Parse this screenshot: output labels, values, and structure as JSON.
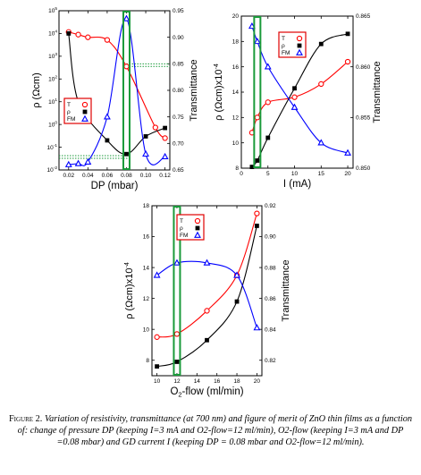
{
  "chart_data": [
    {
      "type": "line",
      "x": [
        0.02,
        0.03,
        0.04,
        0.05,
        0.06,
        0.07,
        0.08,
        0.09,
        0.1,
        0.11,
        0.12
      ],
      "xlabel": "DP (mbar)",
      "ylabel": "ρ (Ωcm)",
      "y2label": "Transmittance",
      "xlim": [
        0.01,
        0.125
      ],
      "xticks": [
        "0.02",
        "0.04",
        "0.06",
        "0.08",
        "0.10",
        "0.12"
      ],
      "ylim_log10": [
        -2,
        5
      ],
      "yticks": [
        "10-2",
        "10-1",
        "100",
        "101",
        "102",
        "103",
        "104",
        "105"
      ],
      "y2lim": [
        0.65,
        0.95
      ],
      "y2ticks": [
        "0.65",
        "0.70",
        "0.75",
        "0.80",
        "0.85",
        "0.90",
        "0.95"
      ],
      "legend": [
        "T",
        "ρ",
        "FM"
      ],
      "legend_position": "left",
      "series": [
        {
          "name": "T",
          "axis": "right",
          "marker": "open-circle",
          "color": "#ff0000",
          "x": [
            0.02,
            0.03,
            0.04,
            0.06,
            0.08,
            0.11,
            0.12
          ],
          "values": [
            0.91,
            0.905,
            0.9,
            0.895,
            0.845,
            0.73,
            0.71
          ]
        },
        {
          "name": "ρ",
          "axis": "left",
          "scale": "log",
          "marker": "filled-square",
          "color": "#000000",
          "x": [
            0.02,
            0.03,
            0.06,
            0.08,
            0.1,
            0.12
          ],
          "values": [
            10000,
            10,
            0.2,
            0.05,
            0.3,
            0.7
          ]
        },
        {
          "name": "FM",
          "axis": "right",
          "marker": "open-triangle",
          "color": "#0000ff",
          "x": [
            0.02,
            0.03,
            0.04,
            0.06,
            0.08,
            0.1,
            0.12
          ],
          "values": [
            0.66,
            0.662,
            0.665,
            0.75,
            0.935,
            0.68,
            0.675
          ]
        }
      ],
      "highlight_x": 0.08,
      "dotted_reference_lines": [
        0.85,
        0.845,
        0.677,
        0.672
      ]
    },
    {
      "type": "line",
      "x": [
        2,
        3,
        5,
        10,
        15,
        20
      ],
      "xlabel": "I (mA)",
      "ylabel": "ρ (Ωcm)x10-4",
      "y2label": "Transmittance",
      "xlim": [
        0,
        21
      ],
      "xticks": [
        "0",
        "5",
        "10",
        "15",
        "20"
      ],
      "ylim": [
        8,
        20
      ],
      "yticks": [
        "8",
        "10",
        "12",
        "14",
        "16",
        "18",
        "20"
      ],
      "y2lim": [
        0.85,
        0.865
      ],
      "y2ticks": [
        "0.850",
        "0.855",
        "0.860",
        "0.865"
      ],
      "legend": [
        "T",
        "ρ",
        "FM"
      ],
      "legend_position": "top-right",
      "series": [
        {
          "name": "T",
          "axis": "right",
          "marker": "open-circle",
          "color": "#ff0000",
          "x": [
            2,
            3,
            5,
            10,
            15,
            20
          ],
          "values": [
            0.8535,
            0.855,
            0.8565,
            0.857,
            0.8583,
            0.8605
          ]
        },
        {
          "name": "ρ",
          "axis": "left",
          "marker": "filled-square",
          "color": "#000000",
          "x": [
            2,
            3,
            5,
            10,
            15,
            20
          ],
          "values": [
            8.1,
            8.6,
            10.4,
            14.3,
            17.8,
            18.6
          ]
        },
        {
          "name": "FM",
          "axis": "right",
          "marker": "open-triangle",
          "color": "#0000ff",
          "x": [
            2,
            3,
            5,
            10,
            15,
            20
          ],
          "values": [
            0.864,
            0.8625,
            0.86,
            0.856,
            0.8525,
            0.8515
          ]
        }
      ],
      "highlight_x": 3
    },
    {
      "type": "line",
      "x": [
        10,
        12,
        15,
        18,
        20
      ],
      "xlabel": "O2-flow (ml/min)",
      "ylabel": "ρ (Ωcm)x10-4",
      "y2label": "Transmittance",
      "xlim": [
        9.5,
        20.5
      ],
      "xticks": [
        "10",
        "12",
        "14",
        "16",
        "18",
        "20"
      ],
      "ylim": [
        7,
        18
      ],
      "yticks": [
        "8",
        "10",
        "12",
        "14",
        "16",
        "18"
      ],
      "y2lim": [
        0.81,
        0.92
      ],
      "y2ticks": [
        "0.82",
        "0.84",
        "0.86",
        "0.88",
        "0.90",
        "0.92"
      ],
      "legend": [
        "T",
        "ρ",
        "FM"
      ],
      "legend_position": "top-left",
      "series": [
        {
          "name": "T",
          "axis": "right",
          "marker": "open-circle",
          "color": "#ff0000",
          "x": [
            10,
            12,
            15,
            18,
            20
          ],
          "values": [
            0.835,
            0.837,
            0.852,
            0.875,
            0.915
          ]
        },
        {
          "name": "ρ",
          "axis": "left",
          "marker": "filled-square",
          "color": "#000000",
          "x": [
            10,
            12,
            15,
            18,
            20
          ],
          "values": [
            7.6,
            7.9,
            9.3,
            11.8,
            16.7
          ]
        },
        {
          "name": "FM",
          "axis": "right",
          "marker": "open-triangle",
          "color": "#0000ff",
          "x": [
            10,
            12,
            15,
            18,
            20
          ],
          "values": [
            0.875,
            0.883,
            0.883,
            0.875,
            0.841
          ]
        }
      ],
      "highlight_x": 12
    }
  ],
  "caption": {
    "label": "Figure 2.",
    "text": "Variation of resistivity, transmittance (at 700 nm) and figure of merit of ZnO thin films as a function of: change of pressure DP (keeping I=3 mA and O2-flow=12 ml/min), O2-flow (keeping I=3 mA and DP =0.08 mbar) and GD current I (keeping DP = 0.08 mbar and O2-flow=12 ml/min)."
  },
  "colors": {
    "T": "#ff0000",
    "rho": "#000000",
    "FM": "#0000ff",
    "highlight": "#1a9a3a"
  }
}
